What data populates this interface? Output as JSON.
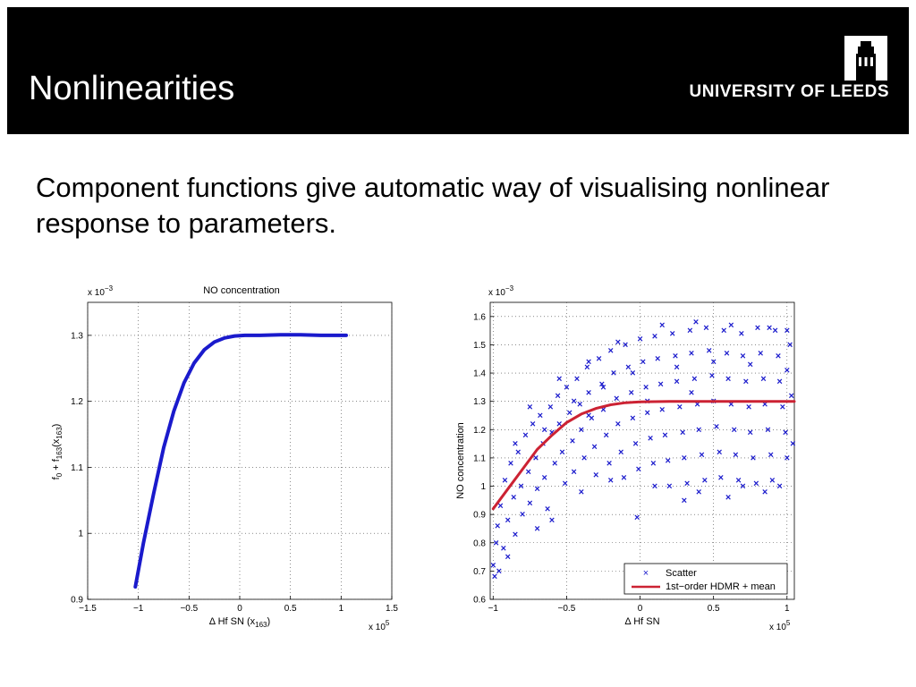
{
  "header": {
    "title": "Nonlinearities",
    "logo_text": "UNIVERSITY OF LEEDS",
    "background": "#000000"
  },
  "body": {
    "text": "Component functions give automatic way of visualising nonlinear response to parameters."
  },
  "chart_data": [
    {
      "type": "line",
      "title": "NO concentration",
      "xlabel": "Δ Hf SN (x163)",
      "ylabel": "f0 + f163(x163)",
      "x_multiplier": "x 10^5",
      "y_multiplier": "x 10^-3",
      "xlim": [
        -1.5,
        1.5
      ],
      "ylim": [
        0.9,
        1.35
      ],
      "xticks": [
        "−1.5",
        "−1",
        "−0.5",
        "0",
        "0.5",
        "1",
        "1.5"
      ],
      "yticks": [
        "0.9",
        "1",
        "1.1",
        "1.2",
        "1.3"
      ],
      "grid": true,
      "series": [
        {
          "color": "#1a1acc",
          "x": [
            -1.03,
            -0.95,
            -0.85,
            -0.75,
            -0.65,
            -0.55,
            -0.45,
            -0.35,
            -0.25,
            -0.15,
            -0.05,
            0.05,
            0.2,
            0.4,
            0.6,
            0.8,
            1.05
          ],
          "y": [
            0.919,
            0.985,
            1.06,
            1.13,
            1.185,
            1.228,
            1.258,
            1.278,
            1.29,
            1.296,
            1.299,
            1.3,
            1.3,
            1.301,
            1.301,
            1.3,
            1.3
          ]
        }
      ]
    },
    {
      "type": "scatter",
      "title": "",
      "xlabel": "Δ Hf SN",
      "ylabel": "NO concentration",
      "x_multiplier": "x 10^5",
      "y_multiplier": "x 10^-3",
      "xlim": [
        -1.02,
        1.05
      ],
      "ylim": [
        0.6,
        1.65
      ],
      "xticks": [
        "−1",
        "−0.5",
        "0",
        "0.5",
        "1"
      ],
      "yticks": [
        "0.6",
        "0.7",
        "0.8",
        "0.9",
        "1",
        "1.1",
        "1.2",
        "1.3",
        "1.4",
        "1.5",
        "1.6"
      ],
      "grid": true,
      "legend": {
        "position": "bottom-right",
        "entries": [
          "Scatter",
          "1st−order HDMR + mean"
        ]
      },
      "series": [
        {
          "name": "Scatter",
          "color": "#1a1acc",
          "points": [
            [
              -1.0,
              0.72
            ],
            [
              -0.98,
              0.8
            ],
            [
              -0.97,
              0.86
            ],
            [
              -0.95,
              0.93
            ],
            [
              -0.93,
              0.78
            ],
            [
              -0.92,
              1.02
            ],
            [
              -0.9,
              0.88
            ],
            [
              -0.88,
              1.08
            ],
            [
              -0.86,
              0.96
            ],
            [
              -0.85,
              0.83
            ],
            [
              -0.83,
              1.12
            ],
            [
              -0.81,
              1.0
            ],
            [
              -0.8,
              0.9
            ],
            [
              -0.78,
              1.18
            ],
            [
              -0.76,
              1.05
            ],
            [
              -0.75,
              0.94
            ],
            [
              -0.73,
              1.22
            ],
            [
              -0.71,
              1.1
            ],
            [
              -0.7,
              0.99
            ],
            [
              -0.68,
              1.25
            ],
            [
              -0.66,
              1.15
            ],
            [
              -0.65,
              1.03
            ],
            [
              -0.63,
              0.92
            ],
            [
              -0.61,
              1.28
            ],
            [
              -0.6,
              1.19
            ],
            [
              -0.58,
              1.08
            ],
            [
              -0.56,
              1.32
            ],
            [
              -0.55,
              1.22
            ],
            [
              -0.53,
              1.12
            ],
            [
              -0.51,
              1.01
            ],
            [
              -0.5,
              1.35
            ],
            [
              -0.48,
              1.26
            ],
            [
              -0.46,
              1.16
            ],
            [
              -0.45,
              1.05
            ],
            [
              -0.43,
              1.38
            ],
            [
              -0.41,
              1.29
            ],
            [
              -0.4,
              1.2
            ],
            [
              -0.38,
              1.1
            ],
            [
              -0.36,
              1.42
            ],
            [
              -0.35,
              1.33
            ],
            [
              -0.33,
              1.24
            ],
            [
              -0.31,
              1.14
            ],
            [
              -0.3,
              1.04
            ],
            [
              -0.28,
              1.45
            ],
            [
              -0.26,
              1.36
            ],
            [
              -0.25,
              1.27
            ],
            [
              -0.23,
              1.18
            ],
            [
              -0.21,
              1.08
            ],
            [
              -0.2,
              1.48
            ],
            [
              -0.18,
              1.4
            ],
            [
              -0.16,
              1.31
            ],
            [
              -0.15,
              1.22
            ],
            [
              -0.13,
              1.12
            ],
            [
              -0.11,
              1.03
            ],
            [
              -0.1,
              1.5
            ],
            [
              -0.08,
              1.42
            ],
            [
              -0.06,
              1.33
            ],
            [
              -0.05,
              1.24
            ],
            [
              -0.03,
              1.15
            ],
            [
              -0.01,
              1.06
            ],
            [
              0.0,
              1.52
            ],
            [
              0.02,
              1.44
            ],
            [
              0.04,
              1.35
            ],
            [
              0.05,
              1.26
            ],
            [
              0.07,
              1.17
            ],
            [
              0.09,
              1.08
            ],
            [
              0.1,
              1.53
            ],
            [
              0.12,
              1.45
            ],
            [
              0.14,
              1.36
            ],
            [
              0.15,
              1.27
            ],
            [
              0.17,
              1.18
            ],
            [
              0.19,
              1.09
            ],
            [
              0.2,
              1.0
            ],
            [
              0.22,
              1.54
            ],
            [
              0.24,
              1.46
            ],
            [
              0.25,
              1.37
            ],
            [
              0.27,
              1.28
            ],
            [
              0.29,
              1.19
            ],
            [
              0.3,
              1.1
            ],
            [
              0.32,
              1.01
            ],
            [
              0.34,
              1.55
            ],
            [
              0.35,
              1.47
            ],
            [
              0.37,
              1.38
            ],
            [
              0.39,
              1.29
            ],
            [
              0.4,
              1.2
            ],
            [
              0.42,
              1.11
            ],
            [
              0.44,
              1.02
            ],
            [
              0.45,
              1.56
            ],
            [
              0.47,
              1.48
            ],
            [
              0.49,
              1.39
            ],
            [
              0.5,
              1.3
            ],
            [
              0.52,
              1.21
            ],
            [
              0.54,
              1.12
            ],
            [
              0.55,
              1.03
            ],
            [
              0.57,
              1.55
            ],
            [
              0.59,
              1.47
            ],
            [
              0.6,
              1.38
            ],
            [
              0.62,
              1.29
            ],
            [
              0.64,
              1.2
            ],
            [
              0.65,
              1.11
            ],
            [
              0.67,
              1.02
            ],
            [
              0.69,
              1.54
            ],
            [
              0.7,
              1.46
            ],
            [
              0.72,
              1.37
            ],
            [
              0.74,
              1.28
            ],
            [
              0.75,
              1.19
            ],
            [
              0.77,
              1.1
            ],
            [
              0.79,
              1.01
            ],
            [
              0.8,
              1.56
            ],
            [
              0.82,
              1.47
            ],
            [
              0.84,
              1.38
            ],
            [
              0.85,
              1.29
            ],
            [
              0.87,
              1.2
            ],
            [
              0.89,
              1.11
            ],
            [
              0.9,
              1.02
            ],
            [
              0.92,
              1.55
            ],
            [
              0.94,
              1.46
            ],
            [
              0.95,
              1.37
            ],
            [
              0.97,
              1.28
            ],
            [
              0.99,
              1.19
            ],
            [
              1.0,
              1.1
            ],
            [
              1.02,
              1.5
            ],
            [
              1.03,
              1.32
            ],
            [
              1.04,
              1.15
            ],
            [
              -0.02,
              0.89
            ],
            [
              0.3,
              0.95
            ],
            [
              0.6,
              0.96
            ],
            [
              0.85,
              0.98
            ],
            [
              -0.99,
              0.68
            ],
            [
              -0.96,
              0.7
            ],
            [
              -0.9,
              0.75
            ],
            [
              -0.7,
              0.85
            ],
            [
              -0.6,
              0.88
            ],
            [
              -0.4,
              0.98
            ],
            [
              -0.2,
              1.02
            ],
            [
              0.1,
              1.0
            ],
            [
              0.4,
              0.98
            ],
            [
              0.7,
              1.0
            ],
            [
              0.95,
              1.0
            ],
            [
              -0.85,
              1.15
            ],
            [
              -0.75,
              1.28
            ],
            [
              -0.55,
              1.38
            ],
            [
              -0.35,
              1.44
            ],
            [
              -0.15,
              1.51
            ],
            [
              0.15,
              1.57
            ],
            [
              0.38,
              1.58
            ],
            [
              0.62,
              1.57
            ],
            [
              0.88,
              1.56
            ],
            [
              1.0,
              1.55
            ],
            [
              -0.45,
              1.3
            ],
            [
              -0.25,
              1.35
            ],
            [
              -0.05,
              1.4
            ],
            [
              0.25,
              1.42
            ],
            [
              0.5,
              1.44
            ],
            [
              0.75,
              1.43
            ],
            [
              1.0,
              1.41
            ],
            [
              -0.65,
              1.2
            ],
            [
              -0.35,
              1.25
            ],
            [
              0.05,
              1.3
            ],
            [
              0.35,
              1.33
            ]
          ]
        },
        {
          "name": "1st−order HDMR + mean",
          "color": "#cc2233",
          "x": [
            -1.0,
            -0.9,
            -0.8,
            -0.7,
            -0.6,
            -0.5,
            -0.4,
            -0.3,
            -0.2,
            -0.1,
            0.0,
            0.2,
            0.4,
            0.6,
            0.8,
            1.05
          ],
          "y": [
            0.92,
            0.99,
            1.06,
            1.13,
            1.18,
            1.225,
            1.255,
            1.275,
            1.288,
            1.295,
            1.298,
            1.3,
            1.3,
            1.3,
            1.3,
            1.3
          ]
        }
      ]
    }
  ]
}
